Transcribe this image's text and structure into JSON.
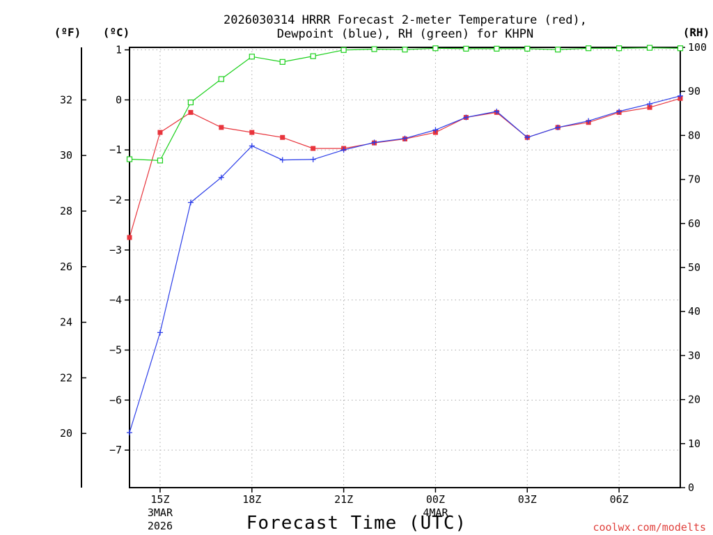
{
  "chart_data": {
    "type": "line",
    "title": "2026030314 HRRR Forecast 2-meter Temperature (red),",
    "subtitle": "Dewpoint (blue), RH (green) for KHPN",
    "xlabel": "Forecast Time (UTC)",
    "credit": "coolwx.com/modelts",
    "axis_units": {
      "fahrenheit": "(ºF)",
      "celsius": "(ºC)",
      "rh": "(RH)"
    },
    "x_hours": [
      14,
      15,
      16,
      17,
      18,
      19,
      20,
      21,
      22,
      23,
      24,
      25,
      26,
      27,
      28,
      29,
      30,
      31,
      32
    ],
    "x_ticks": [
      {
        "hour": 15,
        "label": "15Z",
        "date": "3MAR",
        "year": "2026"
      },
      {
        "hour": 18,
        "label": "18Z",
        "date": "",
        "year": ""
      },
      {
        "hour": 21,
        "label": "21Z",
        "date": "",
        "year": ""
      },
      {
        "hour": 24,
        "label": "00Z",
        "date": "4MAR",
        "year": ""
      },
      {
        "hour": 27,
        "label": "03Z",
        "date": "",
        "year": ""
      },
      {
        "hour": 30,
        "label": "06Z",
        "date": "",
        "year": ""
      }
    ],
    "celsius_range": [
      -7.75,
      1.05
    ],
    "celsius_ticks": [
      "1",
      "0",
      "−1",
      "−2",
      "−3",
      "−4",
      "−5",
      "−6",
      "−7"
    ],
    "celsius_tick_values": [
      1,
      0,
      -1,
      -2,
      -3,
      -4,
      -5,
      -6,
      -7
    ],
    "fahrenheit_ticks": [
      "32",
      "30",
      "28",
      "26",
      "24",
      "22",
      "20"
    ],
    "fahrenheit_tick_values": [
      32,
      30,
      28,
      26,
      24,
      22,
      20
    ],
    "rh_range": [
      0,
      100
    ],
    "rh_ticks": [
      "100",
      "90",
      "80",
      "70",
      "60",
      "50",
      "40",
      "30",
      "20",
      "10",
      "0"
    ],
    "rh_tick_values": [
      100,
      90,
      80,
      70,
      60,
      50,
      40,
      30,
      20,
      10,
      0
    ],
    "series": [
      {
        "name": "Temperature",
        "color": "#e8343c",
        "values": [
          -2.75,
          -0.65,
          -0.25,
          -0.55,
          -0.65,
          -0.75,
          -0.97,
          -0.97,
          -0.86,
          -0.78,
          -0.65,
          -0.35,
          -0.25,
          -0.75,
          -0.55,
          -0.45,
          -0.25,
          -0.15,
          0.03
        ]
      },
      {
        "name": "Dewpoint",
        "color": "#2a3ce8",
        "values": [
          -6.65,
          -4.65,
          -2.05,
          -1.55,
          -0.92,
          -1.2,
          -1.19,
          -1.0,
          -0.85,
          -0.77,
          -0.6,
          -0.35,
          -0.23,
          -0.75,
          -0.55,
          -0.42,
          -0.23,
          -0.08,
          0.08
        ]
      },
      {
        "name": "RH",
        "color": "#1ad01a",
        "values": [
          74.6,
          74.3,
          87.5,
          92.8,
          97.9,
          96.7,
          98.0,
          99.4,
          99.6,
          99.5,
          99.8,
          99.7,
          99.7,
          99.7,
          99.5,
          99.8,
          99.8,
          99.9,
          99.8
        ]
      }
    ]
  }
}
